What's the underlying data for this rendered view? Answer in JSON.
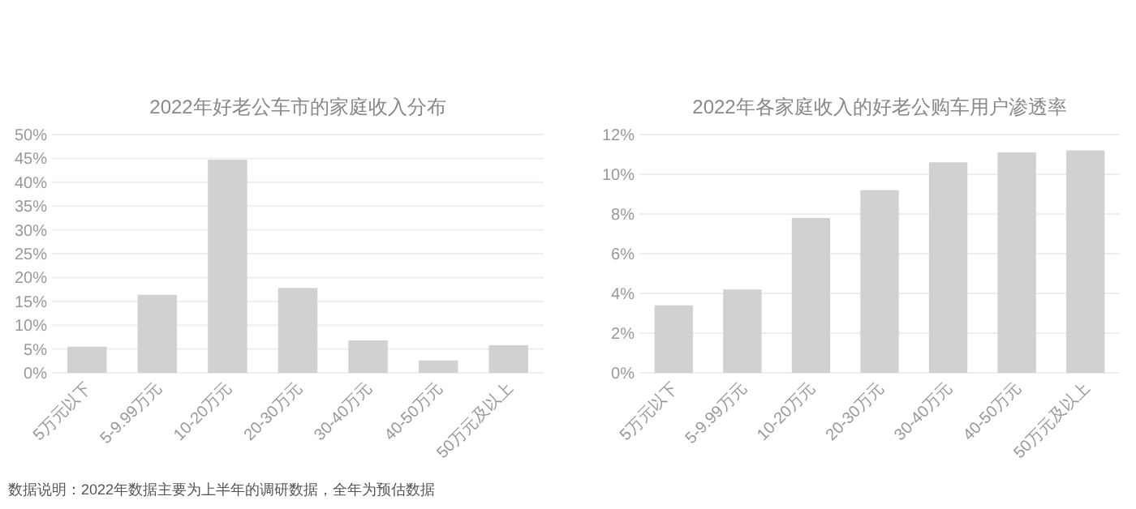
{
  "chart_data": [
    {
      "type": "bar",
      "title": "2022年好老公车市的家庭收入分布",
      "categories": [
        "5万元以下",
        "5-9.99万元",
        "10-20万元",
        "20-30万元",
        "30-40万元",
        "40-50万元",
        "50万元及以上"
      ],
      "series": [
        {
          "color": "#d0d1d3",
          "values": [
            5.5,
            16.4,
            44.7,
            17.8,
            6.8,
            2.6,
            5.8
          ]
        }
      ],
      "ylim": [
        0,
        50
      ],
      "yticks": [
        {
          "value": 0,
          "label": "0%"
        },
        {
          "value": 5,
          "label": "5%"
        },
        {
          "value": 10,
          "label": "10%"
        },
        {
          "value": 15,
          "label": "15%"
        },
        {
          "value": 20,
          "label": "20%"
        },
        {
          "value": 25,
          "label": "25%"
        },
        {
          "value": 30,
          "label": "30%"
        },
        {
          "value": 35,
          "label": "35%"
        },
        {
          "value": 40,
          "label": "40%"
        },
        {
          "value": 45,
          "label": "45%"
        },
        {
          "value": 50,
          "label": "50%"
        }
      ],
      "grid": "y",
      "annotations": [
        "数据说明：2022年数据主要为上半年的调研数据，全年为预估数据"
      ]
    },
    {
      "type": "bar",
      "title": "2022年各家庭收入的好老公购车用户渗透率",
      "categories": [
        "5万元以下",
        "5-9.99万元",
        "10-20万元",
        "20-30万元",
        "30-40万元",
        "40-50万元",
        "50万元及以上"
      ],
      "series": [
        {
          "color": "#d0d1d3",
          "values": [
            3.4,
            4.2,
            7.8,
            9.2,
            10.6,
            11.1,
            11.2
          ]
        }
      ],
      "ylim": [
        0,
        12
      ],
      "yticks": [
        {
          "value": 0,
          "label": "0%"
        },
        {
          "value": 2,
          "label": "2%"
        },
        {
          "value": 4,
          "label": "4%"
        },
        {
          "value": 6,
          "label": "6%"
        },
        {
          "value": 8,
          "label": "8%"
        },
        {
          "value": 10,
          "label": "10%"
        },
        {
          "value": 12,
          "label": "12%"
        }
      ],
      "grid": "y"
    }
  ]
}
